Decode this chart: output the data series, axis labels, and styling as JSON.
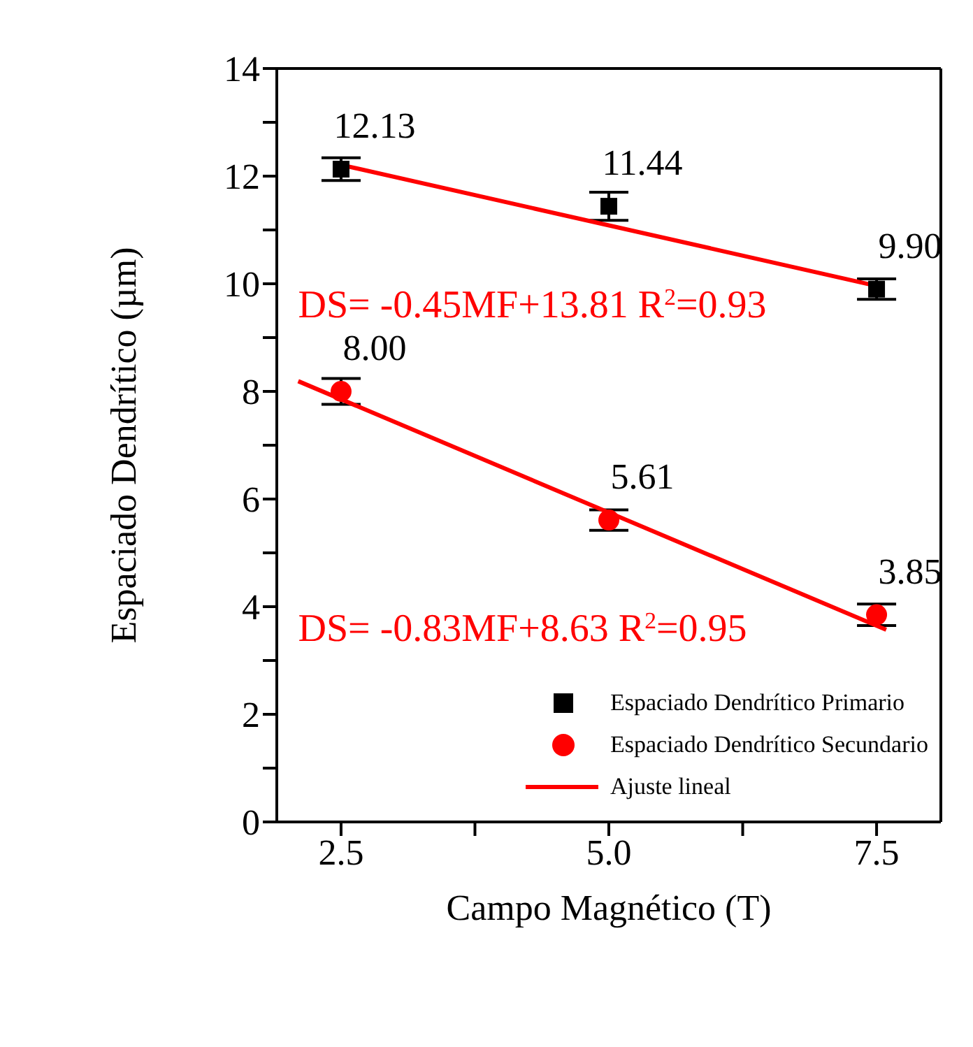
{
  "chart_data": {
    "type": "scatter",
    "xlabel": "Campo Magnético (T)",
    "ylabel": "Espaciado Dendrítico (µm)",
    "xlim": [
      1.9,
      8.1
    ],
    "xticks": [
      2.5,
      {
        "value": 3.75,
        "label": null
      },
      {
        "value": 5,
        "label": "5.0"
      },
      {
        "value": 6.25,
        "label": null
      },
      7.5
    ],
    "ylim": [
      0,
      14
    ],
    "yticks": [
      0,
      {
        "value": 1,
        "label": null
      },
      2,
      {
        "value": 3,
        "label": null
      },
      4,
      {
        "value": 5,
        "label": null
      },
      6,
      {
        "value": 7,
        "label": null
      },
      8,
      {
        "value": 9,
        "label": null
      },
      10,
      {
        "value": 11,
        "label": null
      },
      12,
      {
        "value": 13,
        "label": null
      },
      14
    ],
    "x": [
      2.5,
      5.0,
      7.5
    ],
    "series": [
      {
        "name": "Espaciado Dendrítico Primario",
        "marker": "square",
        "color": "#000000",
        "values": [
          12.13,
          11.44,
          9.9
        ],
        "errors": [
          0.21,
          0.26,
          0.19
        ],
        "value_labels": [
          "12.13",
          "11.44",
          "9.90"
        ]
      },
      {
        "name": "Espaciado Dendrítico Secundario",
        "marker": "circle",
        "color": "#ff0000",
        "values": [
          8.0,
          5.61,
          3.85
        ],
        "errors": [
          0.24,
          0.19,
          0.2
        ],
        "value_labels": [
          "8.00",
          "5.61",
          "3.85"
        ]
      },
      {
        "name": "Ajuste lineal",
        "type": "line",
        "color": "#ff0000",
        "x": [
          2.5,
          7.5
        ],
        "values": [
          12.21,
          9.96
        ]
      },
      {
        "type": "line",
        "color": "#ff0000",
        "x": [
          2.1,
          7.59
        ],
        "values": [
          8.19,
          3.57
        ]
      }
    ],
    "annotations": [
      "DS= -0.45MF+13.81  R$^{2}$=0.93",
      "DS= -0.83MF+8.63  R$^{2}$=0.95"
    ],
    "legend": "bottom right"
  }
}
